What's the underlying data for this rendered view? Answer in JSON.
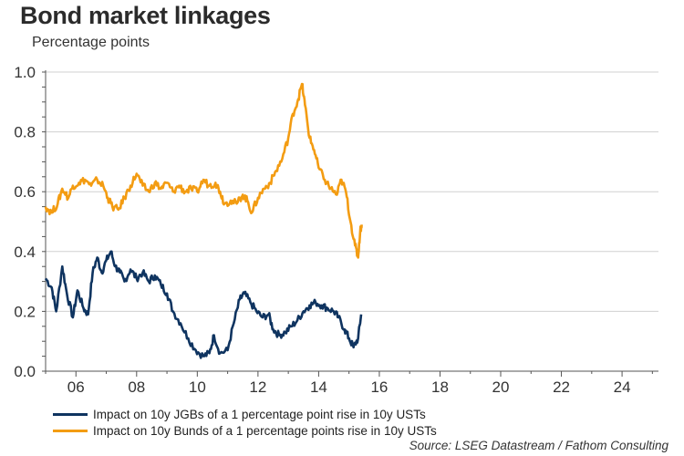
{
  "title": "Bond market linkages",
  "subtitle": "Percentage points",
  "source": "Source: LSEG Datastream / Fathom Consulting",
  "chart_data": {
    "type": "line",
    "xlim": [
      2005,
      2025.2
    ],
    "ylim": [
      0.0,
      1.0
    ],
    "yticks": [
      0.0,
      0.2,
      0.4,
      0.6,
      0.8,
      1.0
    ],
    "ytick_labels": [
      "0.0",
      "0.2",
      "0.4",
      "0.6",
      "0.8",
      "1.0"
    ],
    "xticks": [
      2006,
      2008,
      2010,
      2012,
      2014,
      2016,
      2018,
      2020,
      2022,
      2024
    ],
    "xtick_labels": [
      "06",
      "08",
      "10",
      "12",
      "14",
      "16",
      "18",
      "20",
      "22",
      "24"
    ],
    "grid": "horizontal",
    "legend_position": "bottom",
    "series": [
      {
        "name": "Impact on 10y JGBs of a 1 percentage point rise in 10y USTs",
        "color": "#0f3460",
        "points": [
          [
            2005.0,
            0.31
          ],
          [
            2005.2,
            0.28
          ],
          [
            2005.35,
            0.2
          ],
          [
            2005.55,
            0.35
          ],
          [
            2005.7,
            0.26
          ],
          [
            2005.9,
            0.18
          ],
          [
            2006.05,
            0.27
          ],
          [
            2006.25,
            0.21
          ],
          [
            2006.4,
            0.19
          ],
          [
            2006.55,
            0.33
          ],
          [
            2006.7,
            0.38
          ],
          [
            2006.85,
            0.33
          ],
          [
            2007.0,
            0.37
          ],
          [
            2007.15,
            0.4
          ],
          [
            2007.3,
            0.35
          ],
          [
            2007.45,
            0.33
          ],
          [
            2007.6,
            0.3
          ],
          [
            2007.8,
            0.34
          ],
          [
            2008.0,
            0.31
          ],
          [
            2008.2,
            0.33
          ],
          [
            2008.4,
            0.3
          ],
          [
            2008.6,
            0.32
          ],
          [
            2008.8,
            0.29
          ],
          [
            2009.0,
            0.26
          ],
          [
            2009.2,
            0.2
          ],
          [
            2009.45,
            0.16
          ],
          [
            2009.7,
            0.11
          ],
          [
            2009.95,
            0.07
          ],
          [
            2010.2,
            0.05
          ],
          [
            2010.4,
            0.06
          ],
          [
            2010.55,
            0.12
          ],
          [
            2010.75,
            0.06
          ],
          [
            2011.0,
            0.07
          ],
          [
            2011.2,
            0.16
          ],
          [
            2011.4,
            0.24
          ],
          [
            2011.55,
            0.26
          ],
          [
            2011.75,
            0.23
          ],
          [
            2011.95,
            0.2
          ],
          [
            2012.15,
            0.18
          ],
          [
            2012.35,
            0.19
          ],
          [
            2012.5,
            0.14
          ],
          [
            2012.7,
            0.12
          ],
          [
            2012.9,
            0.13
          ],
          [
            2013.1,
            0.15
          ],
          [
            2013.3,
            0.17
          ],
          [
            2013.5,
            0.2
          ],
          [
            2013.7,
            0.22
          ],
          [
            2013.9,
            0.23
          ],
          [
            2014.1,
            0.22
          ],
          [
            2014.3,
            0.21
          ],
          [
            2014.5,
            0.2
          ],
          [
            2014.65,
            0.18
          ],
          [
            2014.85,
            0.14
          ],
          [
            2015.0,
            0.11
          ],
          [
            2015.15,
            0.08
          ],
          [
            2015.3,
            0.11
          ],
          [
            2015.4,
            0.19
          ]
        ]
      },
      {
        "name": "Impact on 10y Bunds of a 1 percentage points rise in 10y USTs",
        "color": "#f39c12",
        "points": [
          [
            2005.0,
            0.55
          ],
          [
            2005.2,
            0.53
          ],
          [
            2005.4,
            0.56
          ],
          [
            2005.55,
            0.61
          ],
          [
            2005.75,
            0.58
          ],
          [
            2005.9,
            0.62
          ],
          [
            2006.1,
            0.63
          ],
          [
            2006.3,
            0.64
          ],
          [
            2006.5,
            0.62
          ],
          [
            2006.7,
            0.64
          ],
          [
            2006.9,
            0.62
          ],
          [
            2007.05,
            0.58
          ],
          [
            2007.2,
            0.55
          ],
          [
            2007.4,
            0.54
          ],
          [
            2007.6,
            0.58
          ],
          [
            2007.8,
            0.62
          ],
          [
            2008.0,
            0.66
          ],
          [
            2008.2,
            0.62
          ],
          [
            2008.4,
            0.6
          ],
          [
            2008.6,
            0.63
          ],
          [
            2008.8,
            0.61
          ],
          [
            2009.0,
            0.63
          ],
          [
            2009.2,
            0.6
          ],
          [
            2009.4,
            0.62
          ],
          [
            2009.6,
            0.6
          ],
          [
            2009.8,
            0.61
          ],
          [
            2010.0,
            0.6
          ],
          [
            2010.2,
            0.64
          ],
          [
            2010.4,
            0.62
          ],
          [
            2010.6,
            0.63
          ],
          [
            2010.75,
            0.6
          ],
          [
            2010.9,
            0.56
          ],
          [
            2011.1,
            0.57
          ],
          [
            2011.3,
            0.56
          ],
          [
            2011.5,
            0.59
          ],
          [
            2011.65,
            0.57
          ],
          [
            2011.8,
            0.53
          ],
          [
            2012.0,
            0.58
          ],
          [
            2012.2,
            0.61
          ],
          [
            2012.4,
            0.63
          ],
          [
            2012.6,
            0.67
          ],
          [
            2012.8,
            0.71
          ],
          [
            2013.0,
            0.78
          ],
          [
            2013.15,
            0.86
          ],
          [
            2013.3,
            0.9
          ],
          [
            2013.45,
            0.96
          ],
          [
            2013.55,
            0.89
          ],
          [
            2013.7,
            0.78
          ],
          [
            2013.85,
            0.74
          ],
          [
            2014.0,
            0.68
          ],
          [
            2014.2,
            0.64
          ],
          [
            2014.4,
            0.61
          ],
          [
            2014.6,
            0.59
          ],
          [
            2014.75,
            0.64
          ],
          [
            2014.9,
            0.6
          ],
          [
            2015.05,
            0.5
          ],
          [
            2015.2,
            0.42
          ],
          [
            2015.3,
            0.38
          ],
          [
            2015.37,
            0.47
          ],
          [
            2015.42,
            0.49
          ]
        ]
      }
    ]
  }
}
